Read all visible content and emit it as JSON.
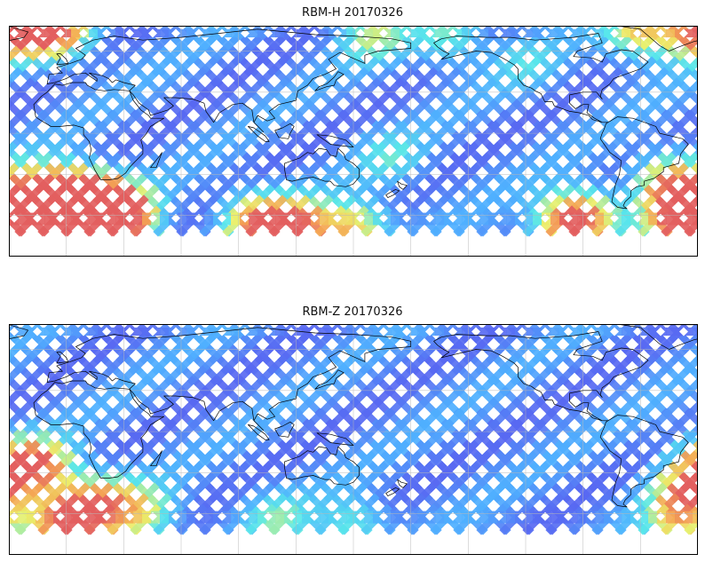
{
  "figure": {
    "panels": [
      {
        "title": "RBM-H 20170326",
        "hotspots": [
          {
            "lon": 120,
            "lat": -70,
            "level": 0.85
          },
          {
            "lon": 100,
            "lat": -65,
            "level": 0.75
          },
          {
            "lon": 150,
            "lat": -72,
            "level": 0.7
          },
          {
            "lon": -90,
            "lat": -62,
            "level": 0.6
          },
          {
            "lon": -100,
            "lat": -65,
            "level": 0.55
          },
          {
            "lon": -40,
            "lat": -60,
            "level": 0.95
          },
          {
            "lon": -20,
            "lat": -58,
            "level": 0.95
          },
          {
            "lon": 0,
            "lat": -58,
            "level": 0.9
          },
          {
            "lon": 15,
            "lat": -52,
            "level": 0.75
          },
          {
            "lon": -45,
            "lat": -35,
            "level": 0.6
          },
          {
            "lon": -10,
            "lat": -40,
            "level": 0.55
          },
          {
            "lon": 8,
            "lat": -45,
            "level": 0.5
          },
          {
            "lon": 30,
            "lat": -60,
            "level": 0.85
          },
          {
            "lon": 20,
            "lat": -68,
            "level": 0.75
          },
          {
            "lon": -30,
            "lat": 72,
            "level": 0.9
          },
          {
            "lon": -5,
            "lat": 72,
            "level": 0.85
          },
          {
            "lon": -60,
            "lat": 72,
            "level": 0.6
          },
          {
            "lon": 160,
            "lat": 70,
            "level": 0.4
          },
          {
            "lon": -160,
            "lat": 68,
            "level": 0.35
          },
          {
            "lon": 170,
            "lat": -20,
            "level": 0.25
          },
          {
            "lon": -120,
            "lat": 50,
            "level": 0.2
          }
        ]
      },
      {
        "title": "RBM-Z 20170326",
        "hotspots": [
          {
            "lon": -25,
            "lat": -25,
            "level": 0.7
          },
          {
            "lon": -10,
            "lat": -28,
            "level": 0.55
          },
          {
            "lon": -35,
            "lat": -45,
            "level": 0.5
          },
          {
            "lon": -5,
            "lat": -65,
            "level": 0.6
          },
          {
            "lon": -40,
            "lat": -62,
            "level": 0.5
          },
          {
            "lon": 10,
            "lat": -60,
            "level": 0.55
          },
          {
            "lon": 20,
            "lat": -50,
            "level": 0.4
          },
          {
            "lon": 40,
            "lat": -60,
            "level": 0.45
          },
          {
            "lon": 150,
            "lat": -70,
            "level": 0.35
          },
          {
            "lon": 110,
            "lat": -65,
            "level": 0.3
          }
        ]
      }
    ],
    "colormap": [
      "#5a57ef",
      "#4fb0ff",
      "#58e8ea",
      "#ecf06a",
      "#f5a653",
      "#e35f5f"
    ]
  }
}
